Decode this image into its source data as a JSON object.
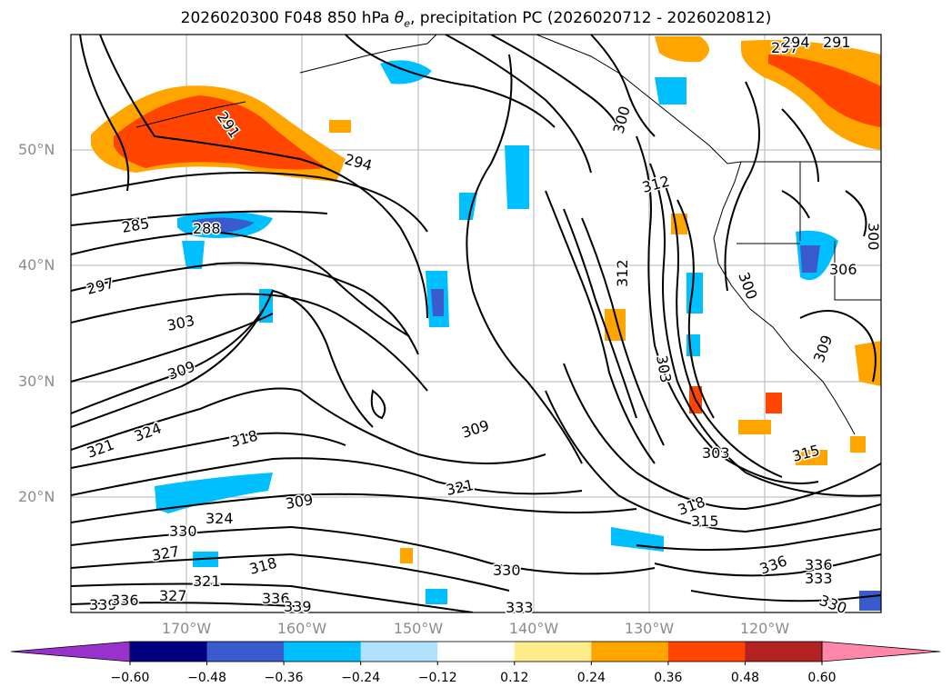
{
  "title_prefix": "2026020300 F048 850 hPa ",
  "title_symbol": "θ",
  "title_symbol_sub": "e",
  "title_suffix": ", precipitation PC (2026020712 - 2026020812)",
  "lat_labels": [
    "50°N",
    "40°N",
    "30°N",
    "20°N"
  ],
  "lon_labels": [
    "170°W",
    "160°W",
    "150°W",
    "140°W",
    "130°W",
    "120°W"
  ],
  "colorbar": {
    "ticks": [
      "−0.60",
      "−0.48",
      "−0.36",
      "−0.24",
      "−0.12",
      "0.12",
      "0.24",
      "0.36",
      "0.48",
      "0.60"
    ],
    "colors": [
      "#9932cc",
      "#000080",
      "#3a5bcd",
      "#00bfff",
      "#b0e2ff",
      "#ffffff",
      "#ffec8b",
      "#ffa500",
      "#ff4500",
      "#b22222",
      "#ff88aa",
      "#ff88aa"
    ]
  },
  "contour_labels": [
    "294",
    "291",
    "288",
    "297",
    "285",
    "303",
    "309",
    "321",
    "324",
    "318",
    "315",
    "312",
    "306",
    "300",
    "330",
    "327",
    "336",
    "339",
    "333"
  ]
}
